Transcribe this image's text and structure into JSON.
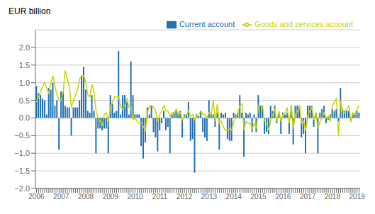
{
  "chart_data": {
    "type": "bar",
    "ylabel": "EUR billion",
    "categories": [
      "2006",
      null,
      null,
      null,
      null,
      null,
      null,
      null,
      null,
      null,
      null,
      null,
      "2007",
      null,
      null,
      null,
      null,
      null,
      null,
      null,
      null,
      null,
      null,
      null,
      "2008",
      null,
      null,
      null,
      null,
      null,
      null,
      null,
      null,
      null,
      null,
      null,
      "2009",
      null,
      null,
      null,
      null,
      null,
      null,
      null,
      null,
      null,
      null,
      null,
      "2010",
      null,
      null,
      null,
      null,
      null,
      null,
      null,
      null,
      null,
      null,
      null,
      "2011",
      null,
      null,
      null,
      null,
      null,
      null,
      null,
      null,
      null,
      null,
      null,
      "2012",
      null,
      null,
      null,
      null,
      null,
      null,
      null,
      null,
      null,
      null,
      null,
      "2013",
      null,
      null,
      null,
      null,
      null,
      null,
      null,
      null,
      null,
      null,
      null,
      "2014",
      null,
      null,
      null,
      null,
      null,
      null,
      null,
      null,
      null,
      null,
      null,
      "2015",
      null,
      null,
      null,
      null,
      null,
      null,
      null,
      null,
      null,
      null,
      null,
      "2016",
      null,
      null,
      null,
      null,
      null,
      null,
      null,
      null,
      null,
      null,
      null,
      "2017",
      null,
      null,
      null,
      null,
      null,
      null,
      null,
      null,
      null,
      null,
      null,
      "2018",
      null,
      null,
      null,
      null,
      null,
      null,
      null,
      null,
      null,
      null,
      null,
      "2019",
      null
    ],
    "series": [
      {
        "name": "Current account",
        "type": "bar",
        "color": "#2070b4",
        "values": [
          0.9,
          0.7,
          0.65,
          0.55,
          0.5,
          0.1,
          0.85,
          0.8,
          1.0,
          0.35,
          0.5,
          -0.9,
          0.75,
          0.75,
          0.35,
          0.3,
          0.3,
          -0.5,
          0.3,
          0.3,
          0.3,
          0.5,
          1.2,
          1.45,
          0.8,
          0.2,
          0.15,
          0.65,
          0.2,
          -1.0,
          -0.3,
          -0.3,
          -0.35,
          -0.3,
          -0.3,
          -1.0,
          0.65,
          0.4,
          0.15,
          0.2,
          1.9,
          0.1,
          0.65,
          0.65,
          0.45,
          0.1,
          1.6,
          0.65,
          0.1,
          0.1,
          0.1,
          -0.8,
          -1.15,
          -0.7,
          0.3,
          0.1,
          0.35,
          -0.4,
          -0.55,
          -0.95,
          -0.35,
          -0.15,
          0.2,
          -0.35,
          -0.25,
          -1.0,
          0.1,
          0.15,
          0.2,
          0.15,
          0.2,
          -0.55,
          0.1,
          0.1,
          0.45,
          -0.65,
          -0.6,
          -1.55,
          0.1,
          0.05,
          0.2,
          -0.4,
          -0.55,
          -0.65,
          0.5,
          0.15,
          0.1,
          -0.25,
          0.15,
          -0.9,
          0.15,
          0.1,
          0.15,
          -0.6,
          -0.65,
          -0.65,
          0.15,
          0.1,
          0.15,
          0.65,
          0.15,
          -1.1,
          0.15,
          0.1,
          0.15,
          -0.4,
          0.1,
          -0.4,
          0.65,
          0.35,
          0.35,
          -0.45,
          -0.4,
          -0.45,
          0.35,
          0.2,
          0.35,
          -0.15,
          0.15,
          -0.45,
          0.15,
          0.1,
          0.15,
          -0.45,
          0.35,
          -0.75,
          0.35,
          0.35,
          0.35,
          -0.55,
          -0.45,
          -1.0,
          0.35,
          0.35,
          0.35,
          -0.25,
          0.15,
          -1.0,
          0.15,
          0.25,
          0.35,
          -0.15,
          -0.05,
          0.1,
          0.25,
          0.2,
          0.25,
          -0.1,
          0.85,
          0.25,
          0.2,
          0.2,
          0.2,
          -0.1,
          0.15,
          0.1,
          0.2,
          0.15
        ]
      },
      {
        "name": "Goods and services account",
        "type": "line",
        "color": "#c8d400",
        "values": [
          0.45,
          0.6,
          0.75,
          0.9,
          1.0,
          0.85,
          0.7,
          1.0,
          1.2,
          0.9,
          0.65,
          0.5,
          0.5,
          0.75,
          1.35,
          1.1,
          0.9,
          0.3,
          0.5,
          0.65,
          0.8,
          1.1,
          1.2,
          1.2,
          1.0,
          0.65,
          0.6,
          0.95,
          0.75,
          0.2,
          0.0,
          -0.1,
          -0.2,
          0.1,
          0.15,
          -0.1,
          0.3,
          0.45,
          0.6,
          0.6,
          0.6,
          0.3,
          0.25,
          0.35,
          0.55,
          0.3,
          0.3,
          -0.05,
          0.0,
          -0.1,
          -0.15,
          -0.15,
          -0.25,
          -0.35,
          0.15,
          0.35,
          0.35,
          0.3,
          0.2,
          -0.1,
          0.1,
          0.2,
          0.35,
          0.2,
          0.2,
          0.05,
          0.15,
          0.15,
          0.25,
          0.1,
          0.15,
          -0.05,
          0.05,
          0.1,
          0.2,
          0.05,
          0.1,
          -0.05,
          0.05,
          0.1,
          0.2,
          0.1,
          0.1,
          0.0,
          0.15,
          0.1,
          0.5,
          -0.1,
          0.4,
          -0.15,
          -0.1,
          -0.25,
          -0.35,
          -0.35,
          -0.3,
          -0.35,
          -0.1,
          0.0,
          0.15,
          0.35,
          0.4,
          -0.35,
          -0.1,
          -0.15,
          -0.15,
          -0.3,
          -0.15,
          -0.3,
          0.35,
          0.35,
          0.35,
          -0.1,
          -0.15,
          -0.35,
          -0.05,
          0.1,
          0.25,
          -0.1,
          0.2,
          -0.1,
          0.1,
          0.15,
          0.3,
          -0.15,
          0.35,
          -0.3,
          0.1,
          0.2,
          0.35,
          -0.15,
          -0.1,
          -0.35,
          0.05,
          0.2,
          0.3,
          -0.05,
          0.15,
          -0.3,
          -0.1,
          0.0,
          0.15,
          0.0,
          0.05,
          -0.1,
          0.35,
          0.45,
          0.55,
          -0.5,
          0.5,
          0.2,
          0.15,
          0.25,
          0.35,
          -0.1,
          0.15,
          0.1,
          0.25,
          0.35
        ]
      }
    ],
    "ylim": [
      -2.0,
      2.5
    ],
    "yticks": [
      {
        "value": -2.0,
        "label": "−2.0"
      },
      {
        "value": -1.5,
        "label": "−1.5"
      },
      {
        "value": -1.0,
        "label": "−1.0"
      },
      {
        "value": -0.5,
        "label": "−0.5"
      },
      {
        "value": 0.0,
        "label": "0.0"
      },
      0.5,
      {
        "value": 1.0,
        "label": "1.0"
      },
      1.5,
      {
        "value": 2.0,
        "label": "2.0"
      }
    ],
    "grid": true,
    "legend": "upper right"
  }
}
